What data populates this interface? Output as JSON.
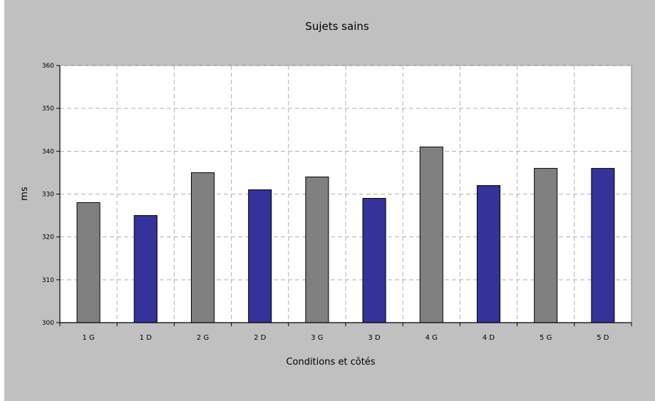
{
  "chart_data": {
    "type": "bar",
    "title": "Sujets sains",
    "xlabel": "Conditions et côtés",
    "ylabel": "ms",
    "categories": [
      "1 G",
      "1 D",
      "2 G",
      "2 D",
      "3 G",
      "3 D",
      "4 G",
      "4 D",
      "5 G",
      "5 D"
    ],
    "values": [
      328,
      325,
      335,
      331,
      334,
      329,
      341,
      332,
      336,
      336
    ],
    "bar_colors": [
      "#808080",
      "#333399",
      "#808080",
      "#333399",
      "#808080",
      "#333399",
      "#808080",
      "#333399",
      "#808080",
      "#333399"
    ],
    "ylim": [
      300,
      360
    ],
    "yticks": [
      300,
      310,
      320,
      330,
      340,
      350,
      360
    ],
    "grid": true,
    "legend": "none",
    "colors": {
      "frame_background": "#c0c0c0",
      "plot_background": "#ffffff",
      "gridline": "#b0b0b0",
      "bar_outline": "#000000"
    }
  }
}
